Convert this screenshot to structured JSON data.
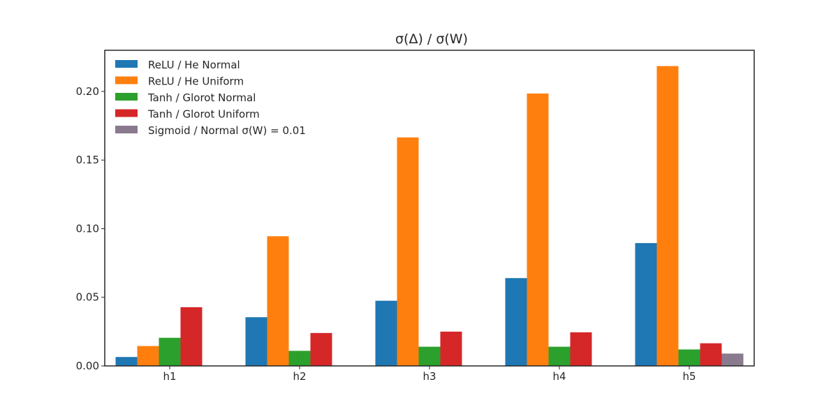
{
  "chart_data": {
    "type": "bar",
    "title": "σ(Δ) / σ(W)",
    "xlabel": "",
    "ylabel": "",
    "categories": [
      "h1",
      "h2",
      "h3",
      "h4",
      "h5"
    ],
    "ylim": [
      0,
      0.23
    ],
    "yticks": [
      "0.00",
      "0.05",
      "0.10",
      "0.15",
      "0.20"
    ],
    "ytick_values": [
      0,
      0.05,
      0.1,
      0.15,
      0.2
    ],
    "grid": false,
    "legend_position": "top-left",
    "series": [
      {
        "name": "ReLU / He Normal",
        "color": "#1f77b4",
        "values": [
          0.0065,
          0.0355,
          0.0475,
          0.064,
          0.0895
        ]
      },
      {
        "name": "ReLU / He Uniform",
        "color": "#ff7f0e",
        "values": [
          0.0145,
          0.0945,
          0.1665,
          0.1985,
          0.2185
        ]
      },
      {
        "name": "Tanh / Glorot Normal",
        "color": "#2ca02c",
        "values": [
          0.0205,
          0.011,
          0.014,
          0.014,
          0.012
        ]
      },
      {
        "name": "Tanh / Glorot Uniform",
        "color": "#d62728",
        "values": [
          0.0428,
          0.024,
          0.025,
          0.0245,
          0.0165
        ]
      },
      {
        "name": "Sigmoid / Normal σ(W) = 0.01",
        "color": "#8a7a8e",
        "values": [
          0.0,
          0.0,
          0.0,
          0.0,
          0.009
        ]
      }
    ]
  }
}
